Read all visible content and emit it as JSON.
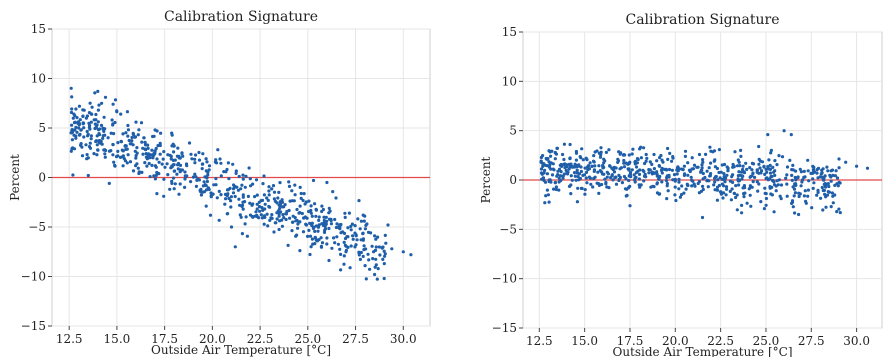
{
  "chart_data": [
    {
      "type": "scatter",
      "title": "Calibration Signature",
      "xlabel": "Outside Air Temperature [°C]",
      "ylabel": "Percent",
      "xlim": [
        11.6,
        31.4
      ],
      "ylim": [
        -15,
        15
      ],
      "xticks": [
        12.5,
        15.0,
        17.5,
        20.0,
        22.5,
        25.0,
        27.5,
        30.0
      ],
      "yticks": [
        -15,
        -10,
        -5,
        0,
        5,
        10,
        15
      ],
      "grid": true,
      "reference_line": {
        "y": 0,
        "color": "#e24a4a"
      },
      "point_color": "#1f5ea8",
      "trend": {
        "x_range": [
          12.6,
          30.6
        ],
        "mean_at_x1": 5.2,
        "mean_at_x2": -8.6,
        "spread": 1.4,
        "count": 720
      },
      "points": [
        {
          "x": 12.6,
          "y": 4.5
        },
        {
          "x": 12.8,
          "y": 4.8
        },
        {
          "x": 13.0,
          "y": 5.0
        },
        {
          "x": 13.2,
          "y": 2.2
        },
        {
          "x": 13.4,
          "y": 6.0
        },
        {
          "x": 13.5,
          "y": 0.2
        },
        {
          "x": 13.7,
          "y": 7.1
        },
        {
          "x": 14.0,
          "y": 8.7
        },
        {
          "x": 14.2,
          "y": 7.5
        },
        {
          "x": 14.4,
          "y": 8.1
        },
        {
          "x": 14.6,
          "y": -0.6
        },
        {
          "x": 14.8,
          "y": 7.4
        },
        {
          "x": 15.2,
          "y": 6.4
        },
        {
          "x": 16.0,
          "y": 5.6
        },
        {
          "x": 17.0,
          "y": 4.8
        },
        {
          "x": 18.0,
          "y": 3.2
        },
        {
          "x": 19.5,
          "y": 2.4
        },
        {
          "x": 20.6,
          "y": 0.6
        },
        {
          "x": 21.0,
          "y": -5.0
        },
        {
          "x": 21.2,
          "y": -7.0
        },
        {
          "x": 22.0,
          "y": -3.8
        },
        {
          "x": 23.3,
          "y": -2.4
        },
        {
          "x": 24.6,
          "y": -1.0
        },
        {
          "x": 25.3,
          "y": -0.3
        },
        {
          "x": 26.0,
          "y": -0.5
        },
        {
          "x": 25.5,
          "y": -6.4
        },
        {
          "x": 27.0,
          "y": -7.5
        },
        {
          "x": 28.0,
          "y": -8.9
        },
        {
          "x": 28.5,
          "y": -9.8
        },
        {
          "x": 29.0,
          "y": -10.2
        },
        {
          "x": 29.4,
          "y": -7.2
        },
        {
          "x": 30.0,
          "y": -7.5
        },
        {
          "x": 30.4,
          "y": -7.8
        },
        {
          "x": 27.9,
          "y": -3.8
        },
        {
          "x": 29.2,
          "y": -4.8
        }
      ]
    },
    {
      "type": "scatter",
      "title": "Calibration Signature",
      "xlabel": "Outside Air Temperature [°C]",
      "ylabel": "Percent",
      "xlim": [
        11.6,
        31.4
      ],
      "ylim": [
        -15,
        15
      ],
      "xticks": [
        12.5,
        15.0,
        17.5,
        20.0,
        22.5,
        25.0,
        27.5,
        30.0
      ],
      "yticks": [
        -15,
        -10,
        -5,
        0,
        5,
        10,
        15
      ],
      "grid": true,
      "reference_line": {
        "y": 0,
        "color": "#e24a4a"
      },
      "point_color": "#1f5ea8",
      "trend": {
        "x_range": [
          12.6,
          30.6
        ],
        "mean_at_x1": 1.2,
        "mean_at_x2": -0.6,
        "spread": 1.2,
        "count": 720
      },
      "points": [
        {
          "x": 12.6,
          "y": 1.8
        },
        {
          "x": 12.8,
          "y": -2.3
        },
        {
          "x": 13.0,
          "y": -1.5
        },
        {
          "x": 13.5,
          "y": 3.2
        },
        {
          "x": 14.2,
          "y": 3.6
        },
        {
          "x": 14.6,
          "y": -2.2
        },
        {
          "x": 16.2,
          "y": 2.8
        },
        {
          "x": 17.5,
          "y": -2.6
        },
        {
          "x": 21.5,
          "y": -3.8
        },
        {
          "x": 23.6,
          "y": 3.0
        },
        {
          "x": 24.6,
          "y": 3.4
        },
        {
          "x": 25.1,
          "y": 4.6
        },
        {
          "x": 25.3,
          "y": 3.0
        },
        {
          "x": 26.0,
          "y": 5.0
        },
        {
          "x": 26.4,
          "y": 4.6
        },
        {
          "x": 26.8,
          "y": -3.5
        },
        {
          "x": 27.3,
          "y": 2.0
        },
        {
          "x": 28.2,
          "y": 0.2
        },
        {
          "x": 28.6,
          "y": -2.7
        },
        {
          "x": 28.9,
          "y": -3.2
        },
        {
          "x": 29.1,
          "y": -3.3
        },
        {
          "x": 29.4,
          "y": 1.8
        },
        {
          "x": 30.0,
          "y": 1.4
        },
        {
          "x": 30.6,
          "y": 1.2
        }
      ]
    }
  ]
}
